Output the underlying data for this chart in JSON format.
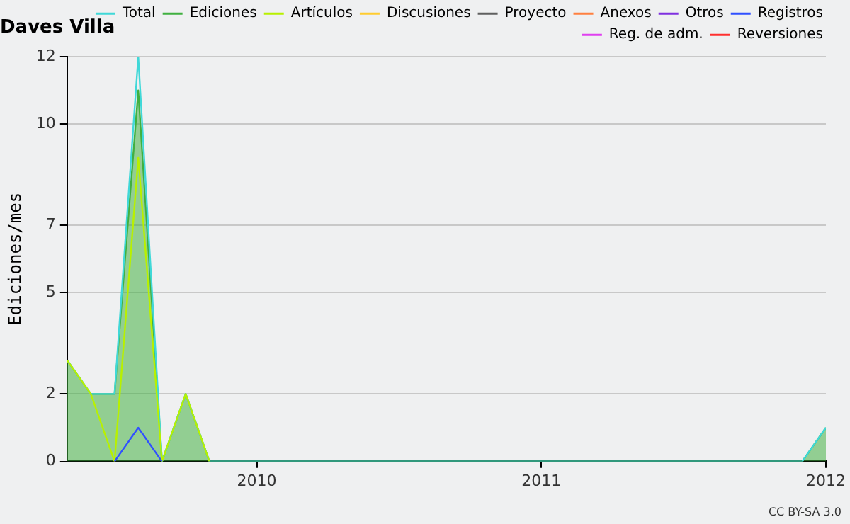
{
  "chart_data": {
    "type": "line",
    "title": "Daves Villa",
    "ylabel": "Ediciones/mes",
    "xlim": [
      "2009-05",
      "2012-01"
    ],
    "xticks": [
      {
        "value": "2010-01",
        "label": "2010"
      },
      {
        "value": "2011-01",
        "label": "2011"
      },
      {
        "value": "2012-01",
        "label": "2012"
      }
    ],
    "ylim": [
      0,
      12
    ],
    "yticks": [
      0,
      2,
      5,
      7,
      10,
      12
    ],
    "grid": "y",
    "legend": "top right",
    "marker": "none",
    "annotations": [
      "CC BY-SA 3.0"
    ],
    "series": [
      {
        "name": "Total",
        "type": "line",
        "color": "#40d8d8",
        "x": [
          "2009-05",
          "2009-06",
          "2009-07",
          "2009-08",
          "2009-09",
          "2009-10",
          "2009-11",
          "2011-12",
          "2012-01"
        ],
        "values": [
          3,
          2,
          2,
          12,
          0,
          2,
          0,
          0,
          1
        ]
      },
      {
        "name": "Ediciones",
        "type": "area",
        "color": "#40b040",
        "x": [
          "2009-05",
          "2009-06",
          "2009-07",
          "2009-08",
          "2009-09",
          "2009-10",
          "2009-11",
          "2011-12",
          "2012-01"
        ],
        "values": [
          3,
          2,
          2,
          11,
          0,
          2,
          0,
          0,
          1
        ]
      },
      {
        "name": "Artículos",
        "type": "line",
        "color": "#b8f000",
        "x": [
          "2009-05",
          "2009-06",
          "2009-07",
          "2009-08",
          "2009-09",
          "2009-10",
          "2009-11"
        ],
        "values": [
          3,
          2,
          0,
          9,
          0,
          2,
          0
        ]
      },
      {
        "name": "Discusiones",
        "type": "line",
        "color": "#ffcc30"
      },
      {
        "name": "Proyecto",
        "type": "line",
        "color": "#606060"
      },
      {
        "name": "Anexos",
        "type": "line",
        "color": "#ff8040"
      },
      {
        "name": "Otros",
        "type": "line",
        "color": "#8030e0"
      },
      {
        "name": "Registros",
        "type": "line",
        "color": "#3050ff",
        "x": [
          "2009-07",
          "2009-08",
          "2009-09"
        ],
        "values": [
          0,
          1,
          0
        ]
      },
      {
        "name": "Reg. de adm.",
        "type": "line",
        "color": "#e040f0"
      },
      {
        "name": "Reversiones",
        "type": "line",
        "color": "#ff3030"
      }
    ]
  }
}
